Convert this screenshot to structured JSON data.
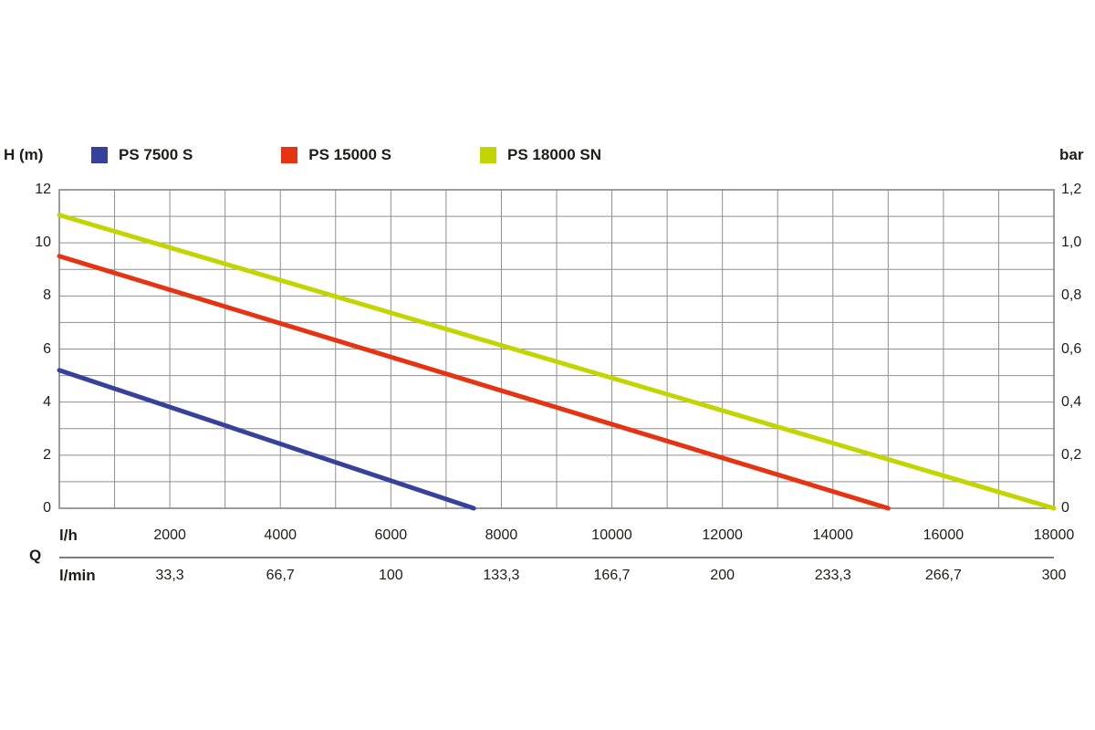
{
  "chart_data": {
    "type": "line",
    "title": "",
    "x_axis": {
      "label": "l/h",
      "min": 0,
      "max": 18000,
      "grid_step": 1000,
      "tick_values": [
        2000,
        4000,
        6000,
        8000,
        10000,
        12000,
        14000,
        16000,
        18000
      ],
      "tick_labels": [
        "2000",
        "4000",
        "6000",
        "8000",
        "10000",
        "12000",
        "14000",
        "16000",
        "18000"
      ]
    },
    "x_axis_secondary": {
      "label": "l/min",
      "symbol": "Q",
      "tick_labels": [
        "33,3",
        "66,7",
        "100",
        "133,3",
        "166,7",
        "200",
        "233,3",
        "266,7",
        "300"
      ]
    },
    "y_axis_left": {
      "label": "H (m)",
      "min": 0,
      "max": 12,
      "grid_step": 1,
      "tick_values": [
        0,
        2,
        4,
        6,
        8,
        10,
        12
      ],
      "tick_labels": [
        "0",
        "2",
        "4",
        "6",
        "8",
        "10",
        "12"
      ]
    },
    "y_axis_right": {
      "label": "bar",
      "min": 0,
      "max": 1.2,
      "tick_labels": [
        "0",
        "0,2",
        "0,4",
        "0,6",
        "0,8",
        "1,0",
        "1,2"
      ]
    },
    "grid": {
      "color": "#8f8f8f",
      "border_color": "#7d7d7d",
      "visible": true
    },
    "legend_position": "top",
    "series": [
      {
        "name": "PS 7500 S",
        "color": "#36409d",
        "points": [
          [
            0,
            5.2
          ],
          [
            7500,
            0
          ]
        ]
      },
      {
        "name": "PS 15000 S",
        "color": "#e63312",
        "points": [
          [
            0,
            9.5
          ],
          [
            15000,
            0
          ]
        ]
      },
      {
        "name": "PS 18000 SN",
        "color": "#c2d500",
        "points": [
          [
            0,
            11.05
          ],
          [
            18000,
            0
          ]
        ]
      }
    ]
  }
}
